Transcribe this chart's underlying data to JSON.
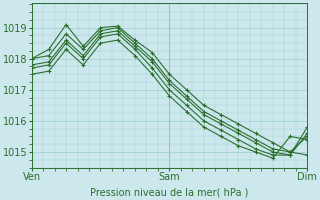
{
  "xlabel": "Pression niveau de la mer( hPa )",
  "bg_color": "#cce8ec",
  "grid_color": "#99ccd4",
  "line_color": "#2d6e2d",
  "tick_label_color": "#2d6e2d",
  "label_color": "#2d6e2d",
  "ylim": [
    1014.5,
    1019.8
  ],
  "xlim": [
    0,
    48
  ],
  "yticks": [
    1015,
    1016,
    1017,
    1018,
    1019
  ],
  "xtick_positions": [
    0,
    24,
    48
  ],
  "xtick_labels": [
    "Ven",
    "Sam",
    "Dim"
  ],
  "series": [
    [
      1018.0,
      1018.3,
      1019.1,
      1018.4,
      1019.0,
      1019.05,
      1018.6,
      1018.2,
      1017.5,
      1017.0,
      1016.5,
      1016.2,
      1015.9,
      1015.6,
      1015.3,
      1015.0,
      1014.9
    ],
    [
      1018.0,
      1018.1,
      1018.8,
      1018.3,
      1018.9,
      1019.0,
      1018.5,
      1018.0,
      1017.3,
      1016.8,
      1016.3,
      1016.0,
      1015.7,
      1015.4,
      1015.1,
      1015.0,
      1015.5
    ],
    [
      1017.8,
      1017.9,
      1018.6,
      1018.1,
      1018.8,
      1018.9,
      1018.4,
      1017.9,
      1017.2,
      1016.7,
      1016.2,
      1015.9,
      1015.6,
      1015.3,
      1015.0,
      1014.9,
      1015.8
    ],
    [
      1017.7,
      1017.8,
      1018.5,
      1018.0,
      1018.7,
      1018.8,
      1018.3,
      1017.7,
      1017.0,
      1016.5,
      1016.0,
      1015.7,
      1015.4,
      1015.1,
      1014.9,
      1014.9,
      1015.6
    ],
    [
      1017.5,
      1017.6,
      1018.3,
      1017.8,
      1018.5,
      1018.6,
      1018.1,
      1017.5,
      1016.8,
      1016.3,
      1015.8,
      1015.5,
      1015.2,
      1015.0,
      1014.8,
      1015.5,
      1015.4
    ]
  ]
}
